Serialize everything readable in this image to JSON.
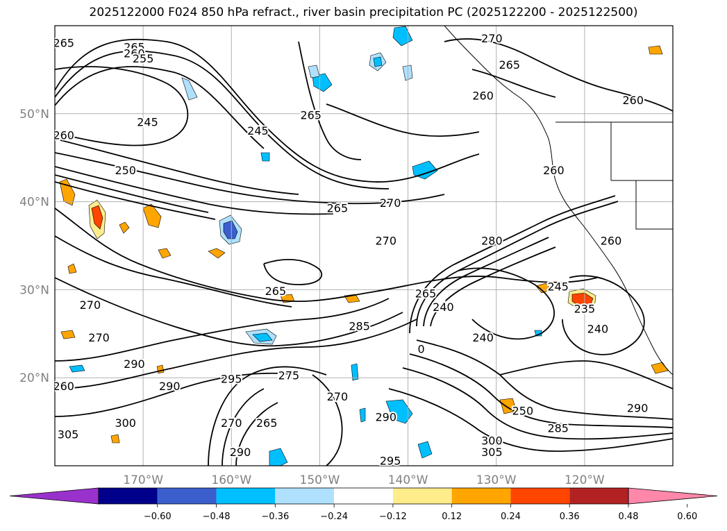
{
  "title": "2025122000 F024 850 hPa refract., river basin precipitation PC (2025122200 - 2025122500)",
  "map": {
    "lon_range": [
      -180,
      -110
    ],
    "lat_range": [
      10,
      60
    ],
    "lat_ticks": [
      {
        "value": 50,
        "label": "50°N"
      },
      {
        "value": 40,
        "label": "40°N"
      },
      {
        "value": 30,
        "label": "30°N"
      },
      {
        "value": 20,
        "label": "20°N"
      }
    ],
    "lon_ticks": [
      {
        "value": -170,
        "label": "170°W"
      },
      {
        "value": -160,
        "label": "160°W"
      },
      {
        "value": -150,
        "label": "150°W"
      },
      {
        "value": -140,
        "label": "140°W"
      },
      {
        "value": -130,
        "label": "130°W"
      },
      {
        "value": -120,
        "label": "120°W"
      }
    ],
    "gridlines": true,
    "contour_labels": [
      {
        "text": "265",
        "lon": -179,
        "lat": 58
      },
      {
        "text": "265",
        "lon": -171,
        "lat": 57.5
      },
      {
        "text": "260",
        "lon": -171,
        "lat": 56.8
      },
      {
        "text": "255",
        "lon": -170,
        "lat": 56.2
      },
      {
        "text": "245",
        "lon": -169.5,
        "lat": 49
      },
      {
        "text": "260",
        "lon": -179,
        "lat": 47.5
      },
      {
        "text": "250",
        "lon": -172,
        "lat": 43.5
      },
      {
        "text": "245",
        "lon": -157,
        "lat": 48
      },
      {
        "text": "265",
        "lon": -151,
        "lat": 49.8
      },
      {
        "text": "270",
        "lon": -130.5,
        "lat": 58.5
      },
      {
        "text": "265",
        "lon": -128.5,
        "lat": 55.5
      },
      {
        "text": "260",
        "lon": -131.5,
        "lat": 52
      },
      {
        "text": "260",
        "lon": -114.5,
        "lat": 51.5
      },
      {
        "text": "260",
        "lon": -123.5,
        "lat": 43.5
      },
      {
        "text": "270",
        "lon": -142,
        "lat": 39.8
      },
      {
        "text": "265",
        "lon": -148,
        "lat": 39.2
      },
      {
        "text": "270",
        "lon": -142.5,
        "lat": 35.5
      },
      {
        "text": "280",
        "lon": -130.5,
        "lat": 35.5
      },
      {
        "text": "260",
        "lon": -117,
        "lat": 35.5
      },
      {
        "text": "245",
        "lon": -123,
        "lat": 30.3
      },
      {
        "text": "235",
        "lon": -120,
        "lat": 27.8
      },
      {
        "text": "240",
        "lon": -136,
        "lat": 28
      },
      {
        "text": "240",
        "lon": -131.5,
        "lat": 24.5
      },
      {
        "text": "240",
        "lon": -118.5,
        "lat": 25.5
      },
      {
        "text": "265",
        "lon": -155,
        "lat": 29.8
      },
      {
        "text": "270",
        "lon": -176,
        "lat": 28.2
      },
      {
        "text": "270",
        "lon": -175,
        "lat": 24.5
      },
      {
        "text": "285",
        "lon": -145.5,
        "lat": 25.8
      },
      {
        "text": "290",
        "lon": -171,
        "lat": 21.5
      },
      {
        "text": "290",
        "lon": -167,
        "lat": 19
      },
      {
        "text": "295",
        "lon": -160,
        "lat": 19.8
      },
      {
        "text": "275",
        "lon": -153.5,
        "lat": 20.2
      },
      {
        "text": "270",
        "lon": -148,
        "lat": 17.8
      },
      {
        "text": "270",
        "lon": -160,
        "lat": 14.8
      },
      {
        "text": "265",
        "lon": -156,
        "lat": 14.8
      },
      {
        "text": "260",
        "lon": -179,
        "lat": 19
      },
      {
        "text": "300",
        "lon": -172,
        "lat": 14.8
      },
      {
        "text": "305",
        "lon": -178.5,
        "lat": 13.5
      },
      {
        "text": "290",
        "lon": -142.5,
        "lat": 15.5
      },
      {
        "text": "290",
        "lon": -159,
        "lat": 11.5
      },
      {
        "text": "295",
        "lon": -142,
        "lat": 10.5
      },
      {
        "text": "250",
        "lon": -127,
        "lat": 16.2
      },
      {
        "text": "285",
        "lon": -123,
        "lat": 14.2
      },
      {
        "text": "300",
        "lon": -130.5,
        "lat": 12.8
      },
      {
        "text": "305",
        "lon": -130.5,
        "lat": 11.5
      },
      {
        "text": "290",
        "lon": -114,
        "lat": 16.5
      },
      {
        "text": "0",
        "lon": -138.5,
        "lat": 23.2
      },
      {
        "text": "265",
        "lon": -138,
        "lat": 29.5
      }
    ]
  },
  "colorbar": {
    "colors": [
      "#9932CC",
      "#00008B",
      "#3A5FCD",
      "#00BFFF",
      "#AFE1FF",
      "#FFFFFF",
      "#FFEC8B",
      "#FFA500",
      "#FF4500",
      "#B22222",
      "#FF88AA"
    ],
    "ticks": [
      "−0.60",
      "−0.48",
      "−0.36",
      "−0.24",
      "−0.12",
      "0.12",
      "0.24",
      "0.36",
      "0.48",
      "0.60"
    ]
  }
}
